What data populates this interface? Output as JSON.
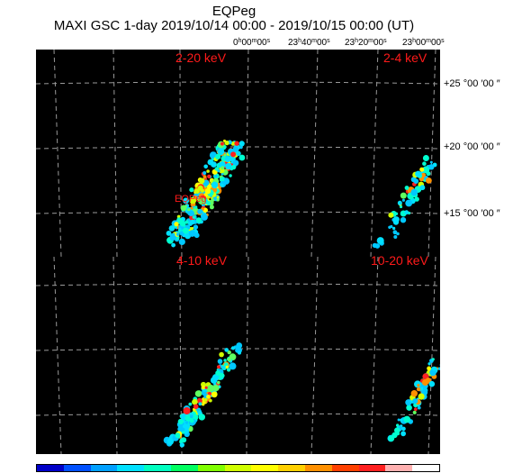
{
  "title": "EQPeg",
  "subtitle": "MAXI GSC 1-day 2019/10/14 00:00 - 2019/10/15 00:00 (UT)",
  "ra_labels": [
    {
      "h": "0",
      "m": "00",
      "s": "00"
    },
    {
      "h": "23",
      "m": "40",
      "s": "00"
    },
    {
      "h": "23",
      "m": "20",
      "s": "00"
    },
    {
      "h": "23",
      "m": "00",
      "s": "00"
    }
  ],
  "dec_labels": [
    "+25 °00 ′00 ″",
    "+20 °00 ′00 ″",
    "+15 °00 ′00 ″"
  ],
  "panels": [
    "2-20 keV",
    "2-4 keV",
    "4-10 keV",
    "10-20 keV"
  ],
  "source_label": "EQPeg",
  "colorbar": [
    "#0000c8",
    "#0050ff",
    "#00a0ff",
    "#00e0ff",
    "#00ffc0",
    "#00ff60",
    "#80ff00",
    "#d0ff00",
    "#ffff00",
    "#ffd000",
    "#ff9000",
    "#ff4000",
    "#ff2020",
    "#ffb0b0",
    "#ffffff"
  ]
}
